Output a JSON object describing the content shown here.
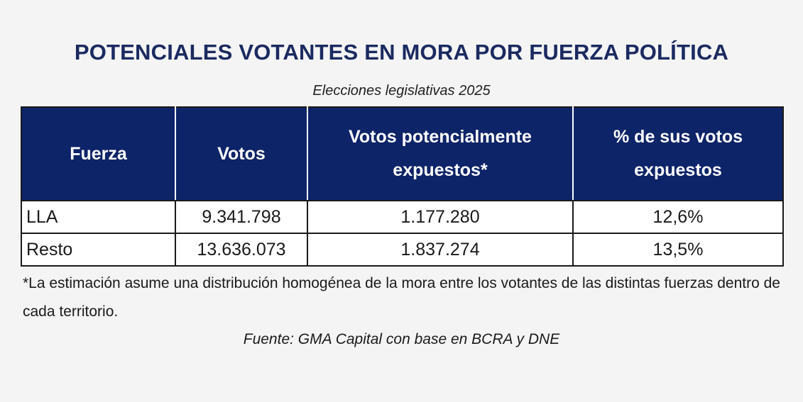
{
  "title": "POTENCIALES VOTANTES EN MORA POR FUERZA POLÍTICA",
  "subtitle": "Elecciones legislativas 2025",
  "table": {
    "headers": [
      "Fuerza",
      "Votos",
      "Votos potencialmente expuestos*",
      "% de sus votos expuestos"
    ],
    "rows": [
      {
        "fuerza": "LLA",
        "votos": "9.341.798",
        "expuestos": "1.177.280",
        "pct": "12,6%"
      },
      {
        "fuerza": "Resto",
        "votos": "13.636.073",
        "expuestos": "1.837.274",
        "pct": "13,5%"
      }
    ]
  },
  "footnote": "*La estimación asume una distribución homogénea de la mora entre los votantes de las distintas fuerzas dentro de cada territorio.",
  "source": "Fuente: GMA Capital con base en BCRA y DNE",
  "colors": {
    "header_bg": "#0e2468",
    "title": "#1b2a60",
    "background": "#f4f4f4"
  }
}
